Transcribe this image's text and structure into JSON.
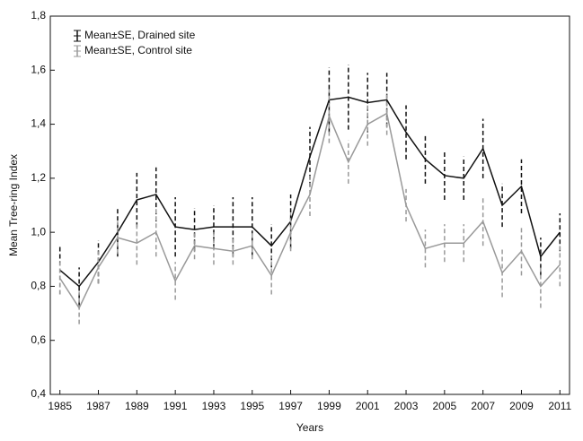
{
  "chart_data": {
    "type": "line",
    "x_label": "Years",
    "y_label": "Mean Tree-ring Index",
    "x": [
      1985,
      1986,
      1987,
      1988,
      1989,
      1990,
      1991,
      1992,
      1993,
      1994,
      1995,
      1996,
      1997,
      1998,
      1999,
      2000,
      2001,
      2002,
      2003,
      2004,
      2005,
      2006,
      2007,
      2008,
      2009,
      2010,
      2011
    ],
    "series": [
      {
        "name": "Mean±SE, Drained site",
        "color": "#111111",
        "values": [
          0.86,
          0.8,
          0.89,
          1.0,
          1.12,
          1.14,
          1.02,
          1.01,
          1.02,
          1.02,
          1.02,
          0.95,
          1.04,
          1.28,
          1.49,
          1.5,
          1.48,
          1.49,
          1.37,
          1.27,
          1.21,
          1.2,
          1.31,
          1.1,
          1.17,
          0.91,
          1.0
        ],
        "errors": [
          0.09,
          0.07,
          0.08,
          0.09,
          0.1,
          0.1,
          0.11,
          0.08,
          0.08,
          0.11,
          0.11,
          0.08,
          0.1,
          0.11,
          0.12,
          0.12,
          0.11,
          0.1,
          0.1,
          0.09,
          0.09,
          0.08,
          0.11,
          0.08,
          0.1,
          0.07,
          0.07
        ]
      },
      {
        "name": "Mean±SE, Control site",
        "color": "#999999",
        "values": [
          0.83,
          0.72,
          0.87,
          0.98,
          0.96,
          1.0,
          0.82,
          0.95,
          0.94,
          0.93,
          0.95,
          0.84,
          1.0,
          1.14,
          1.43,
          1.26,
          1.4,
          1.44,
          1.1,
          0.94,
          0.96,
          0.96,
          1.04,
          0.85,
          0.93,
          0.8,
          0.88
        ],
        "errors": [
          0.06,
          0.06,
          0.06,
          0.06,
          0.08,
          0.09,
          0.07,
          0.05,
          0.06,
          0.05,
          0.05,
          0.07,
          0.07,
          0.08,
          0.1,
          0.08,
          0.08,
          0.08,
          0.06,
          0.07,
          0.07,
          0.07,
          0.09,
          0.09,
          0.09,
          0.08,
          0.08
        ]
      }
    ],
    "xlim": [
      1984.5,
      2011.5
    ],
    "xticks": [
      1985,
      1987,
      1989,
      1991,
      1993,
      1995,
      1997,
      1999,
      2001,
      2003,
      2005,
      2007,
      2009,
      2011
    ],
    "ylim": [
      0.4,
      1.8
    ],
    "yticks": [
      {
        "value": 0.4,
        "label": "0,4"
      },
      {
        "value": 0.6,
        "label": "0,6"
      },
      {
        "value": 0.8,
        "label": "0,8"
      },
      {
        "value": 1.0,
        "label": "1,0"
      },
      {
        "value": 1.2,
        "label": "1,2"
      },
      {
        "value": 1.4,
        "label": "1,4"
      },
      {
        "value": 1.6,
        "label": "1,6"
      },
      {
        "value": 1.8,
        "label": "1,8"
      }
    ],
    "legend": "top-left",
    "grid": false
  }
}
